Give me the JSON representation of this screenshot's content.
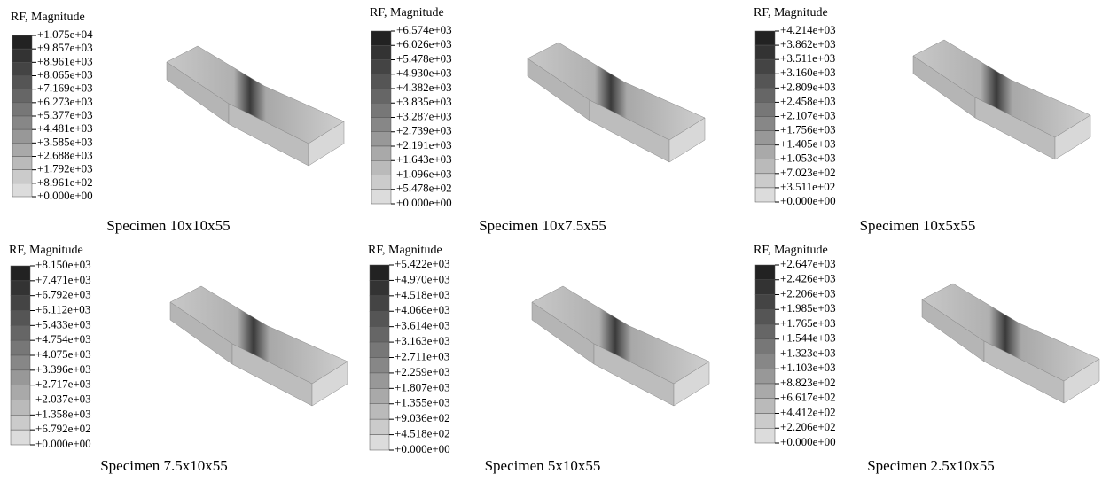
{
  "panels": [
    {
      "legend_title": "RF, Magnitude",
      "levels": [
        "+1.075e+04",
        "+9.857e+03",
        "+8.961e+03",
        "+8.065e+03",
        "+7.169e+03",
        "+6.273e+03",
        "+5.377e+03",
        "+4.481e+03",
        "+3.585e+03",
        "+2.688e+03",
        "+1.792e+03",
        "+8.961e+02",
        "+0.000e+00"
      ],
      "caption": "Specimen 10x10x55"
    },
    {
      "legend_title": "RF, Magnitude",
      "levels": [
        "+6.574e+03",
        "+6.026e+03",
        "+5.478e+03",
        "+4.930e+03",
        "+4.382e+03",
        "+3.835e+03",
        "+3.287e+03",
        "+2.739e+03",
        "+2.191e+03",
        "+1.643e+03",
        "+1.096e+03",
        "+5.478e+02",
        "+0.000e+00"
      ],
      "caption": "Specimen 10x7.5x55"
    },
    {
      "legend_title": "RF, Magnitude",
      "levels": [
        "+4.214e+03",
        "+3.862e+03",
        "+3.511e+03",
        "+3.160e+03",
        "+2.809e+03",
        "+2.458e+03",
        "+2.107e+03",
        "+1.756e+03",
        "+1.405e+03",
        "+1.053e+03",
        "+7.023e+02",
        "+3.511e+02",
        "+0.000e+00"
      ],
      "caption": "Specimen 10x5x55"
    },
    {
      "legend_title": "RF, Magnitude",
      "levels": [
        "+8.150e+03",
        "+7.471e+03",
        "+6.792e+03",
        "+6.112e+03",
        "+5.433e+03",
        "+4.754e+03",
        "+4.075e+03",
        "+3.396e+03",
        "+2.717e+03",
        "+2.037e+03",
        "+1.358e+03",
        "+6.792e+02",
        "+0.000e+00"
      ],
      "caption": "Specimen 7.5x10x55"
    },
    {
      "legend_title": "RF, Magnitude",
      "levels": [
        "+5.422e+03",
        "+4.970e+03",
        "+4.518e+03",
        "+4.066e+03",
        "+3.614e+03",
        "+3.163e+03",
        "+2.711e+03",
        "+2.259e+03",
        "+1.807e+03",
        "+1.355e+03",
        "+9.036e+02",
        "+4.518e+02",
        "+0.000e+00"
      ],
      "caption": "Specimen 5x10x55"
    },
    {
      "legend_title": "RF, Magnitude",
      "levels": [
        "+2.647e+03",
        "+2.426e+03",
        "+2.206e+03",
        "+1.985e+03",
        "+1.765e+03",
        "+1.544e+03",
        "+1.323e+03",
        "+1.103e+03",
        "+8.823e+02",
        "+6.617e+02",
        "+4.412e+02",
        "+2.206e+02",
        "+0.000e+00"
      ],
      "caption": "Specimen 2.5x10x55"
    }
  ]
}
